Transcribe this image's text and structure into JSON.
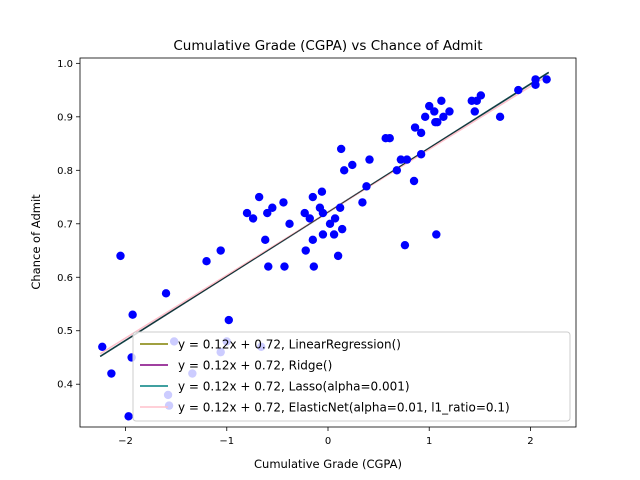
{
  "chart_data": {
    "type": "scatter",
    "title": "Cumulative Grade (CGPA) vs Chance of Admit",
    "xlabel": "Cumulative Grade (CGPA)",
    "ylabel": "Chance of Admit",
    "xlim": [
      -2.45,
      2.45
    ],
    "ylim": [
      0.32,
      1.01
    ],
    "xticks": [
      -2,
      -1,
      0,
      1,
      2
    ],
    "yticks": [
      0.4,
      0.5,
      0.6,
      0.7,
      0.8,
      0.9,
      1.0
    ],
    "grid": false,
    "legend_position": "lower-right",
    "scatter": {
      "color": "#0000ff",
      "points": [
        [
          -2.23,
          0.47
        ],
        [
          -2.05,
          0.64
        ],
        [
          -2.14,
          0.42
        ],
        [
          -1.97,
          0.34
        ],
        [
          -1.94,
          0.45
        ],
        [
          -1.93,
          0.53
        ],
        [
          -1.6,
          0.57
        ],
        [
          -1.58,
          0.38
        ],
        [
          -1.57,
          0.36
        ],
        [
          -1.52,
          0.48
        ],
        [
          -1.34,
          0.42
        ],
        [
          -1.2,
          0.63
        ],
        [
          -1.06,
          0.65
        ],
        [
          -1.06,
          0.46
        ],
        [
          -1.0,
          0.48
        ],
        [
          -0.98,
          0.52
        ],
        [
          -0.8,
          0.72
        ],
        [
          -0.74,
          0.71
        ],
        [
          -0.68,
          0.75
        ],
        [
          -0.66,
          0.47
        ],
        [
          -0.62,
          0.67
        ],
        [
          -0.6,
          0.72
        ],
        [
          -0.59,
          0.62
        ],
        [
          -0.55,
          0.73
        ],
        [
          -0.44,
          0.74
        ],
        [
          -0.43,
          0.62
        ],
        [
          -0.38,
          0.7
        ],
        [
          -0.23,
          0.72
        ],
        [
          -0.22,
          0.65
        ],
        [
          -0.18,
          0.71
        ],
        [
          -0.15,
          0.75
        ],
        [
          -0.15,
          0.67
        ],
        [
          -0.14,
          0.62
        ],
        [
          -0.08,
          0.73
        ],
        [
          -0.06,
          0.76
        ],
        [
          -0.05,
          0.68
        ],
        [
          -0.05,
          0.72
        ],
        [
          0.02,
          0.7
        ],
        [
          0.06,
          0.68
        ],
        [
          0.07,
          0.71
        ],
        [
          0.1,
          0.64
        ],
        [
          0.12,
          0.73
        ],
        [
          0.13,
          0.84
        ],
        [
          0.14,
          0.69
        ],
        [
          0.16,
          0.8
        ],
        [
          0.24,
          0.81
        ],
        [
          0.34,
          0.74
        ],
        [
          0.38,
          0.77
        ],
        [
          0.41,
          0.82
        ],
        [
          0.57,
          0.86
        ],
        [
          0.61,
          0.86
        ],
        [
          0.68,
          0.8
        ],
        [
          0.72,
          0.82
        ],
        [
          0.76,
          0.66
        ],
        [
          0.78,
          0.82
        ],
        [
          0.85,
          0.78
        ],
        [
          0.86,
          0.88
        ],
        [
          0.92,
          0.87
        ],
        [
          0.92,
          0.83
        ],
        [
          0.96,
          0.9
        ],
        [
          1.0,
          0.92
        ],
        [
          1.05,
          0.91
        ],
        [
          1.06,
          0.89
        ],
        [
          1.07,
          0.68
        ],
        [
          1.08,
          0.89
        ],
        [
          1.12,
          0.93
        ],
        [
          1.14,
          0.9
        ],
        [
          1.2,
          0.91
        ],
        [
          1.42,
          0.93
        ],
        [
          1.45,
          0.91
        ],
        [
          1.47,
          0.93
        ],
        [
          1.51,
          0.94
        ],
        [
          1.7,
          0.9
        ],
        [
          1.88,
          0.95
        ],
        [
          2.05,
          0.97
        ],
        [
          2.05,
          0.96
        ],
        [
          2.16,
          0.97
        ]
      ]
    },
    "series": [
      {
        "name": "y = 0.12x + 0.72, LinearRegression()",
        "color": "#808000",
        "line": [
          [
            -2.25,
            0.452
          ],
          [
            2.18,
            0.983
          ]
        ]
      },
      {
        "name": "y = 0.12x + 0.72, Ridge()",
        "color": "#800080",
        "line": [
          [
            -2.25,
            0.452
          ],
          [
            2.18,
            0.983
          ]
        ]
      },
      {
        "name": "y = 0.12x + 0.72, Lasso(alpha=0.001)",
        "color": "#008080",
        "line": [
          [
            -2.25,
            0.452
          ],
          [
            2.18,
            0.983
          ]
        ]
      },
      {
        "name": "y = 0.12x + 0.72, ElasticNet(alpha=0.01, l1_ratio=0.1)",
        "color": "#ffc0cb",
        "line": [
          [
            -2.25,
            0.457
          ],
          [
            2.18,
            0.978
          ]
        ]
      }
    ]
  }
}
